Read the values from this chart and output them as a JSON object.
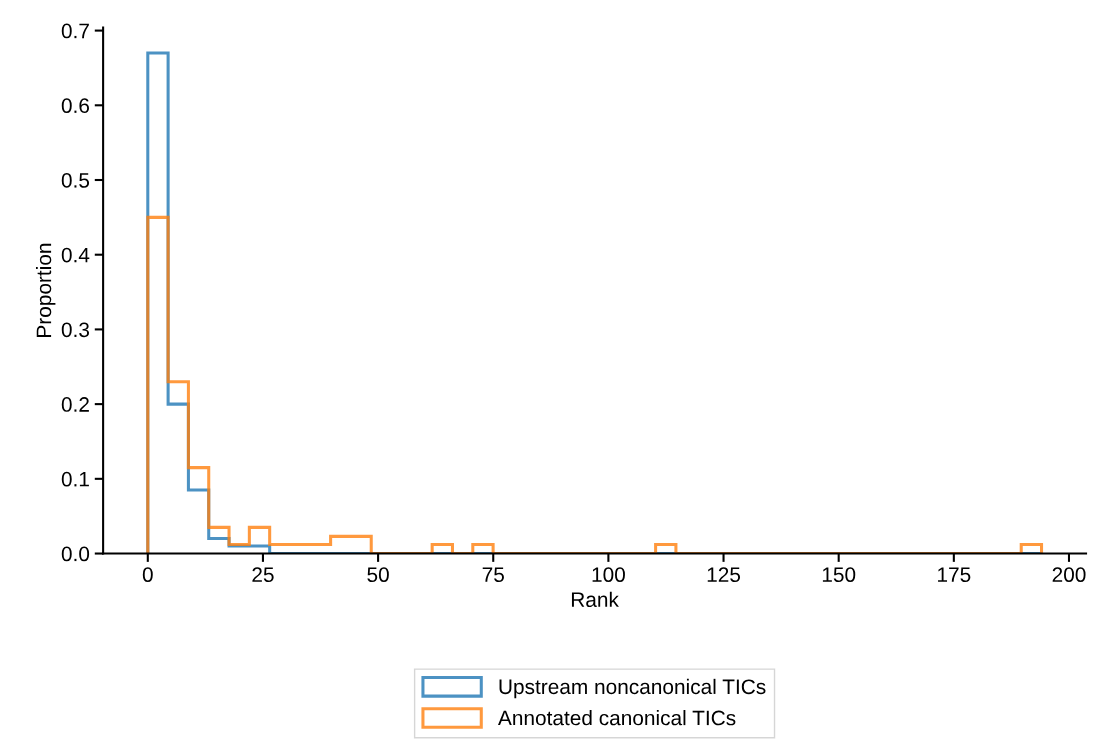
{
  "chart_data": {
    "type": "histogram",
    "xlabel": "Rank",
    "ylabel": "Proportion",
    "bins": [
      0,
      4.41,
      8.82,
      13.23,
      17.64,
      22.05,
      26.46,
      30.87,
      35.28,
      39.69,
      44.1,
      48.51,
      52.92,
      57.33,
      61.74,
      66.15,
      70.56,
      74.97,
      79.38,
      83.79,
      88.2,
      92.61,
      97.02,
      101.43,
      105.84,
      110.25,
      114.66,
      119.07,
      123.48,
      127.89,
      132.3,
      136.71,
      141.12,
      145.53,
      149.94,
      154.35,
      158.76,
      163.17,
      167.58,
      171.99,
      176.4,
      180.81,
      185.22,
      189.63,
      194.04
    ],
    "series": [
      {
        "name": "Upstream noncanonical TICs",
        "color": "#1f77b4",
        "values": [
          0.67,
          0.2,
          0.085,
          0.02,
          0.01,
          0.01,
          0,
          0,
          0,
          0,
          0,
          0,
          0,
          0,
          0,
          0,
          0,
          0,
          0,
          0,
          0,
          0,
          0,
          0,
          0,
          0,
          0,
          0,
          0,
          0,
          0,
          0,
          0,
          0,
          0,
          0,
          0,
          0,
          0,
          0,
          0,
          0,
          0,
          0
        ]
      },
      {
        "name": "Annotated canonical TICs",
        "color": "#ff7f0e",
        "values": [
          0.45,
          0.23,
          0.115,
          0.035,
          0.012,
          0.035,
          0.012,
          0.012,
          0.012,
          0.023,
          0.023,
          0,
          0,
          0,
          0.012,
          0,
          0.012,
          0,
          0,
          0,
          0,
          0,
          0,
          0,
          0,
          0.012,
          0,
          0,
          0,
          0,
          0,
          0,
          0,
          0,
          0,
          0,
          0,
          0,
          0,
          0,
          0,
          0,
          0,
          0.012
        ]
      }
    ],
    "xlim": [
      -9.7,
      203.7
    ],
    "xticks": [
      0,
      25,
      50,
      75,
      100,
      125,
      150,
      175,
      200
    ],
    "ylim": [
      0,
      0.704
    ],
    "yticks": [
      {
        "value": 0,
        "label": "0.0"
      },
      {
        "value": 0.1,
        "label": "0.1"
      },
      {
        "value": 0.2,
        "label": "0.2"
      },
      {
        "value": 0.3,
        "label": "0.3"
      },
      {
        "value": 0.4,
        "label": "0.4"
      },
      {
        "value": 0.5,
        "label": "0.5"
      },
      {
        "value": 0.6,
        "label": "0.6"
      },
      {
        "value": 0.7,
        "label": "0.7"
      }
    ],
    "grid": false,
    "legend": "bottom"
  }
}
